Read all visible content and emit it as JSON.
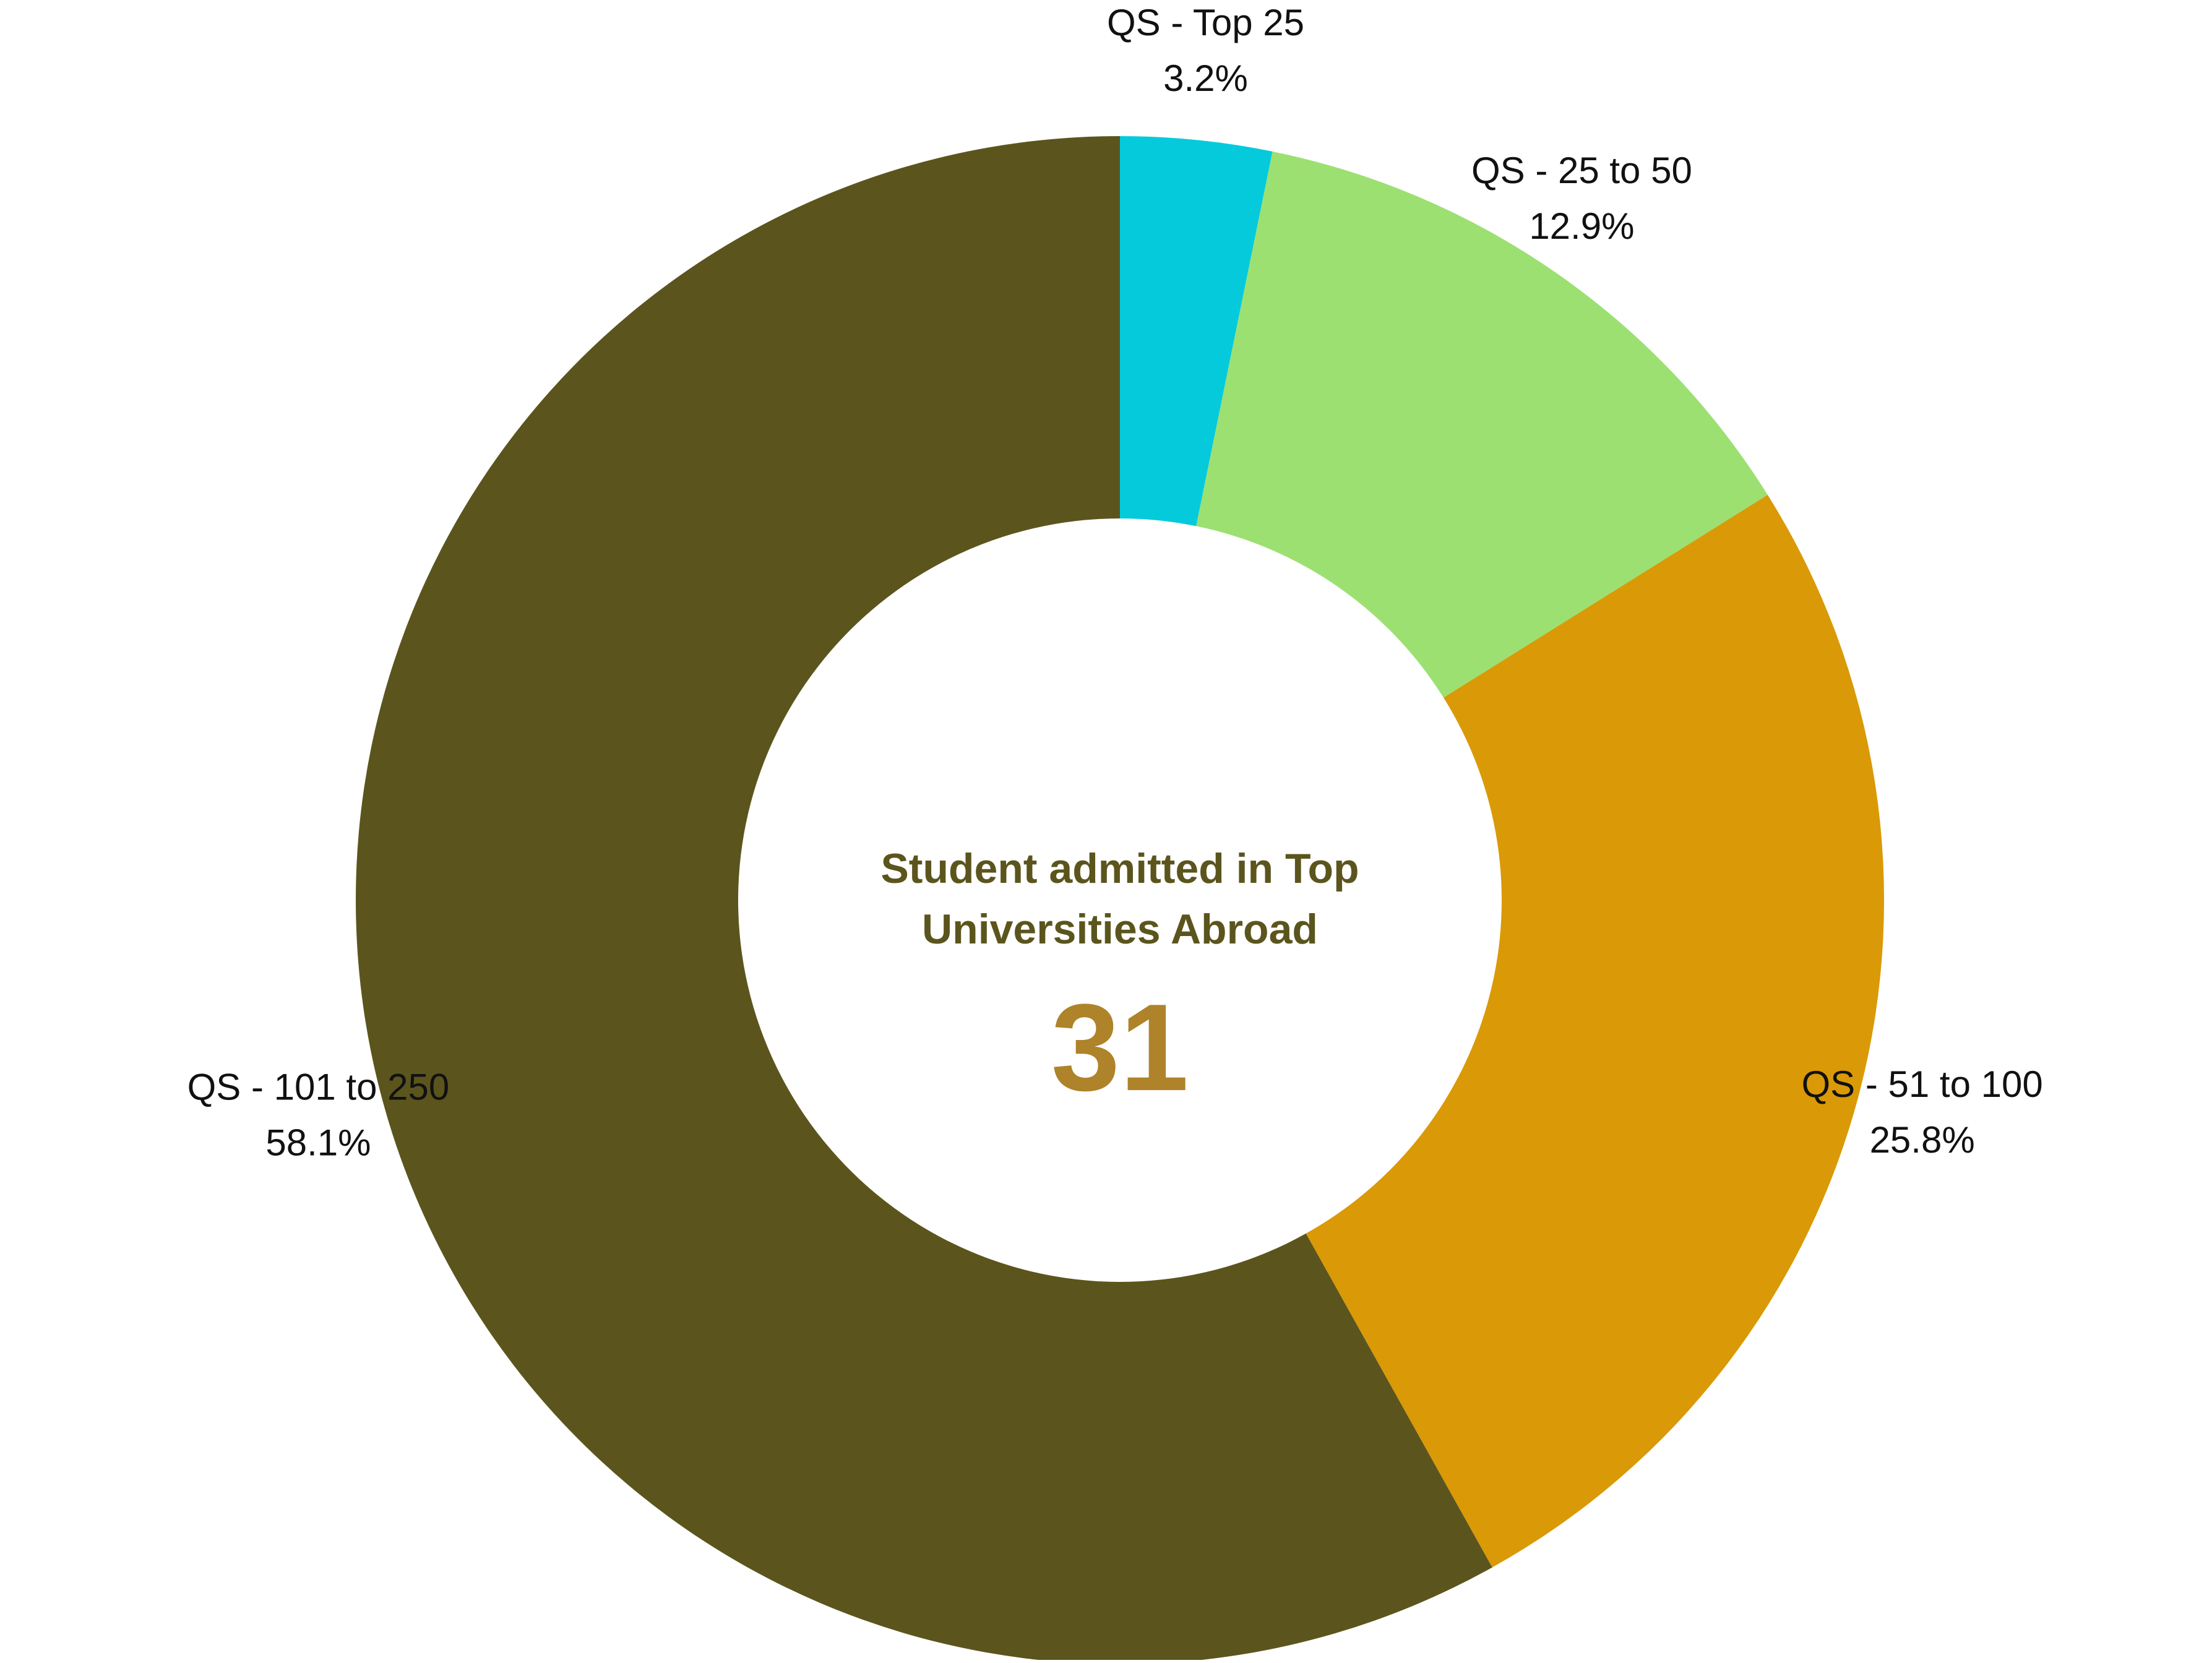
{
  "chart_data": {
    "type": "pie",
    "variant": "donut",
    "categories": [
      "QS - Top 25",
      "QS - 25 to 50",
      "QS - 51 to 100",
      "QS - 101 to 250"
    ],
    "values": [
      3.2,
      12.9,
      25.8,
      58.1
    ],
    "value_labels": [
      "3.2%",
      "12.9%",
      "25.8%",
      "58.1%"
    ],
    "colors": [
      "#05CADC",
      "#9CE072",
      "#DA9906",
      "#5B551D"
    ],
    "center": {
      "title_lines": [
        "Student admitted in Top",
        "Universities Abroad"
      ],
      "value": "31",
      "title_color": "#5B551D",
      "value_color": "#AE8329"
    },
    "start": "top",
    "direction": "clockwise"
  }
}
